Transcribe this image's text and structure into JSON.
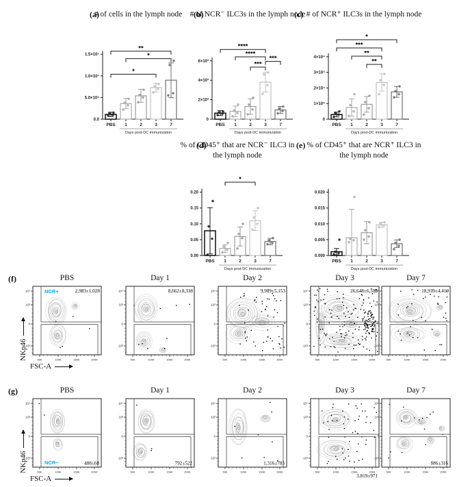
{
  "figure": {
    "bar_palette": [
      "#1a1a1a",
      "#a9a9a9",
      "#9b9b9b",
      "#c0c0c0",
      "#6f6f6f"
    ],
    "accent_cyan": "#00aeef",
    "axis_color": "#1a1a1a"
  },
  "panels": {
    "a": {
      "letter": "(a)",
      "title": "# of cells in the lymph node"
    },
    "b": {
      "letter": "(b)",
      "title": "# of NCR⁻ ILC3s in the lymph node"
    },
    "c": {
      "letter": "(c)",
      "title": "# of NCR⁺ ILC3s in the lymph node"
    },
    "d": {
      "letter": "(d)",
      "title": "% of CD45⁺ that are NCR⁻ ILC3 in the lymph node"
    },
    "e": {
      "letter": "(e)",
      "title": "% of CD45⁺ that are NCR⁺ ILC3 in the lymph node"
    }
  },
  "chart_data": {
    "a": {
      "type": "bar",
      "categories": [
        "PBS",
        "1",
        "2",
        "3",
        "7"
      ],
      "values": [
        1100000,
        3600000,
        5400000,
        7300000,
        9000000
      ],
      "errors": [
        500000,
        1200000,
        1500000,
        1000000,
        4000000
      ],
      "points": [
        [
          800000,
          1000000,
          1300000,
          1500000
        ],
        [
          2200000,
          3200000,
          3800000,
          4700000
        ],
        [
          3900000,
          5000000,
          5600000,
          6800000
        ],
        [
          6200000,
          7000000,
          7600000,
          8100000
        ],
        [
          5500000,
          6000000,
          12500000,
          13500000
        ]
      ],
      "ylim": [
        0,
        15500000
      ],
      "yticks": [
        {
          "v": 0,
          "label": "0.0"
        },
        {
          "v": 5000000,
          "label": "5.0×10⁶"
        },
        {
          "v": 10000000,
          "label": "1.0×10⁷"
        },
        {
          "v": 15000000,
          "label": "1.5×10⁷"
        }
      ],
      "significance": [
        {
          "from": 0,
          "to": 4,
          "label": "**",
          "row": 1.4
        },
        {
          "from": 1,
          "to": 4,
          "label": "*",
          "row": 2.3
        },
        {
          "from": 0,
          "to": 3,
          "label": "*",
          "row": 4.2
        }
      ],
      "xlabel": "Days post-DC immunization"
    },
    "b": {
      "type": "bar",
      "categories": [
        "PBS",
        "1",
        "2",
        "3",
        "7"
      ],
      "values": [
        620,
        800,
        1300,
        3800,
        950
      ],
      "errors": [
        250,
        550,
        800,
        1000,
        350
      ],
      "points": [
        [
          420,
          560,
          700,
          800
        ],
        [
          300,
          620,
          900,
          1500
        ],
        [
          500,
          1000,
          1500,
          2200
        ],
        [
          2600,
          3500,
          4600,
          4800
        ],
        [
          600,
          850,
          1100,
          1300
        ]
      ],
      "ylim": [
        0,
        6900
      ],
      "yticks": [
        {
          "v": 0,
          "label": "0"
        },
        {
          "v": 2000,
          "label": "2×10³"
        },
        {
          "v": 4000,
          "label": "4×10³"
        },
        {
          "v": 6000,
          "label": "6×10³"
        }
      ],
      "significance": [
        {
          "from": 0,
          "to": 3,
          "label": "****",
          "row": 1.18
        },
        {
          "from": 1,
          "to": 3,
          "label": "****",
          "row": 2.08
        },
        {
          "from": 3,
          "to": 4,
          "label": "***",
          "row": 2.63
        },
        {
          "from": 2,
          "to": 3,
          "label": "***",
          "row": 3.33
        }
      ],
      "xlabel": "Days post-DC immunization"
    },
    "c": {
      "type": "bar",
      "categories": [
        "PBS",
        "1",
        "2",
        "3",
        "7"
      ],
      "values": [
        3000,
        7500,
        9500,
        23500,
        17500
      ],
      "errors": [
        1500,
        5500,
        5000,
        5500,
        3500
      ],
      "points": [
        [
          1500,
          3000,
          4000,
          5000
        ],
        [
          2000,
          5000,
          9000,
          16000
        ],
        [
          3000,
          7000,
          11000,
          15000
        ],
        [
          16000,
          22000,
          25000,
          29000
        ],
        [
          14000,
          16000,
          18000,
          21000
        ]
      ],
      "ylim": [
        0,
        43000
      ],
      "yticks": [
        {
          "v": 0,
          "label": "0"
        },
        {
          "v": 10000,
          "label": "1×10⁴"
        },
        {
          "v": 20000,
          "label": "2×10⁴"
        },
        {
          "v": 30000,
          "label": "3×10⁴"
        },
        {
          "v": 40000,
          "label": "4×10⁴"
        }
      ],
      "significance": [
        {
          "from": 0,
          "to": 4,
          "label": "*",
          "row": 0
        },
        {
          "from": 0,
          "to": 3,
          "label": "***",
          "row": 1
        },
        {
          "from": 1,
          "to": 3,
          "label": "**",
          "row": 2
        },
        {
          "from": 2,
          "to": 3,
          "label": "**",
          "row": 3
        }
      ],
      "xlabel": "Days post-DC immunization"
    },
    "d": {
      "type": "bar",
      "categories": [
        "PBS",
        "1",
        "2",
        "3",
        "7"
      ],
      "values": [
        0.078,
        0.022,
        0.06,
        0.11,
        0.044
      ],
      "errors": [
        0.073,
        0.012,
        0.03,
        0.031,
        0.01
      ],
      "points": [
        [
          0.002,
          0.053,
          0.092,
          0.172
        ],
        [
          0.01,
          0.018,
          0.028,
          0.04
        ],
        [
          0.022,
          0.055,
          0.068,
          0.1
        ],
        [
          0.082,
          0.1,
          0.12,
          0.15
        ],
        [
          0.036,
          0.04,
          0.048,
          0.055
        ]
      ],
      "ylim": [
        0,
        0.212
      ],
      "yticks": [
        {
          "v": 0,
          "label": "0.00"
        },
        {
          "v": 0.05,
          "label": "0.05"
        },
        {
          "v": 0.1,
          "label": "0.10"
        },
        {
          "v": 0.15,
          "label": "0.15"
        },
        {
          "v": 0.2,
          "label": "0.20"
        }
      ],
      "significance": [
        {
          "from": 1,
          "to": 3,
          "label": "*",
          "row": 0.75
        }
      ],
      "xlabel": "Days post-DC immunization"
    },
    "e": {
      "type": "bar",
      "categories": [
        "PBS",
        "1",
        "2",
        "3",
        "7"
      ],
      "values": [
        0.0012,
        0.0056,
        0.0072,
        0.0097,
        0.0037
      ],
      "errors": [
        0.001,
        0.009,
        0.0035,
        0.0008,
        0.0012
      ],
      "points": [
        [
          0.0004,
          0.0008,
          0.0012,
          0.005
        ],
        [
          0.0042,
          0.0048,
          0.0052,
          0.0185
        ],
        [
          0.005,
          0.006,
          0.008,
          0.0105
        ],
        [
          0.009,
          0.0095,
          0.01,
          0.0105
        ],
        [
          0.002,
          0.003,
          0.004,
          0.005
        ]
      ],
      "ylim": [
        0,
        0.0212
      ],
      "yticks": [
        {
          "v": 0,
          "label": "0.000"
        },
        {
          "v": 0.005,
          "label": "0.005"
        },
        {
          "v": 0.01,
          "label": "0.010"
        },
        {
          "v": 0.015,
          "label": "0.015"
        },
        {
          "v": 0.02,
          "label": "0.020"
        }
      ],
      "significance": [],
      "xlabel": "Days post-DC immunization"
    },
    "flow_axis": {
      "ylabel": "NKp46",
      "xlabel": "FSC-A",
      "yticks": [
        {
          "f": 0.07,
          "label": "10⁴"
        },
        {
          "f": 0.27,
          "label": "10³"
        },
        {
          "f": 0.55,
          "label": "0"
        },
        {
          "f": 0.87,
          "label": "-10³"
        }
      ],
      "xticks": [
        {
          "f": 0.1,
          "label": "50K"
        },
        {
          "f": 0.37,
          "label": "100K"
        },
        {
          "f": 0.64,
          "label": "150K"
        },
        {
          "f": 0.9,
          "label": "200K"
        }
      ]
    },
    "f": {
      "type": "contour",
      "letter": "(f)",
      "gate": "NCR+",
      "plots": [
        {
          "title": "PBS",
          "count": "2,983±1,028",
          "count_pos": "tr",
          "gate_label": "NCR+",
          "gate_label_pos": "tl",
          "seed": 11,
          "outliers": 5,
          "contours": [
            [
              0.34,
              0.36,
              0.15,
              0.2,
              9
            ],
            [
              0.36,
              0.72,
              0.12,
              0.16,
              7
            ],
            [
              0.62,
              0.28,
              0.06,
              0.05,
              3
            ]
          ]
        },
        {
          "title": "Day 1",
          "count": "8,662±8,338",
          "count_pos": "tr",
          "seed": 12,
          "outliers": 9,
          "contours": [
            [
              0.3,
              0.33,
              0.17,
              0.19,
              9
            ],
            [
              0.27,
              0.8,
              0.12,
              0.13,
              6
            ],
            [
              0.55,
              0.93,
              0.05,
              0.04,
              2
            ]
          ]
        },
        {
          "title": "Day 2",
          "count": "9,989±5,153",
          "count_pos": "tr",
          "seed": 13,
          "outliers": 55,
          "spread": [
            0.3,
            0.98,
            0.08,
            0.95
          ],
          "contours": [
            [
              0.36,
              0.4,
              0.27,
              0.24,
              9
            ],
            [
              0.65,
              0.52,
              0.2,
              0.12,
              4
            ],
            [
              0.3,
              0.68,
              0.17,
              0.14,
              6
            ]
          ]
        },
        {
          "title": "Day 3",
          "count": "26,648±6,313",
          "count_pos": "tr",
          "seed": 14,
          "outliers": 140,
          "spread": [
            0.05,
            0.98,
            0.03,
            0.97
          ],
          "clusters": [
            {
              "cx": 0.85,
              "cy": 0.52,
              "r": 0.1,
              "count": 70
            }
          ],
          "contours": [
            [
              0.42,
              0.32,
              0.36,
              0.2,
              9
            ],
            [
              0.45,
              0.8,
              0.34,
              0.12,
              8
            ],
            [
              0.15,
              0.55,
              0.08,
              0.3,
              4
            ],
            [
              0.6,
              0.55,
              0.12,
              0.08,
              3
            ]
          ]
        },
        {
          "title": "Day 7",
          "count": "18,939±4,419",
          "count_pos": "tr",
          "seed": 15,
          "outliers": 40,
          "spread": [
            0.2,
            0.98,
            0.05,
            0.95
          ],
          "contours": [
            [
              0.42,
              0.36,
              0.32,
              0.22,
              9
            ],
            [
              0.4,
              0.7,
              0.24,
              0.13,
              6
            ],
            [
              0.8,
              0.7,
              0.07,
              0.06,
              3
            ],
            [
              0.85,
              0.3,
              0.05,
              0.04,
              2
            ]
          ]
        }
      ]
    },
    "g": {
      "type": "contour",
      "letter": "(g)",
      "gate": "NCR−",
      "plots": [
        {
          "title": "PBS",
          "count": "488±68",
          "count_pos": "br",
          "gate_label": "NCR−",
          "gate_label_pos": "bl",
          "seed": 21,
          "outliers": 2,
          "contours": [
            [
              0.36,
              0.33,
              0.11,
              0.18,
              9
            ],
            [
              0.37,
              0.66,
              0.07,
              0.09,
              5
            ]
          ]
        },
        {
          "title": "Day 1",
          "count": "792±522",
          "count_pos": "br",
          "seed": 22,
          "outliers": 3,
          "contours": [
            [
              0.3,
              0.33,
              0.13,
              0.18,
              9
            ],
            [
              0.22,
              0.78,
              0.11,
              0.13,
              7
            ]
          ]
        },
        {
          "title": "Day 2",
          "count": "1,316±783",
          "count_pos": "br",
          "seed": 23,
          "outliers": 8,
          "contours": [
            [
              0.3,
              0.42,
              0.13,
              0.27,
              8
            ],
            [
              0.68,
              0.28,
              0.07,
              0.05,
              2
            ]
          ]
        },
        {
          "title": "Day 3",
          "count": "3,819±971",
          "count_pos": "below",
          "seed": 24,
          "outliers": 55,
          "spread": [
            0.15,
            0.98,
            0.05,
            0.97
          ],
          "contours": [
            [
              0.36,
              0.3,
              0.24,
              0.16,
              9
            ],
            [
              0.36,
              0.74,
              0.24,
              0.14,
              8
            ]
          ]
        },
        {
          "title": "Day 7",
          "count": "886±316",
          "count_pos": "br",
          "seed": 25,
          "outliers": 15,
          "contours": [
            [
              0.36,
              0.28,
              0.15,
              0.13,
              8
            ],
            [
              0.58,
              0.33,
              0.11,
              0.07,
              4
            ],
            [
              0.33,
              0.66,
              0.12,
              0.11,
              6
            ],
            [
              0.72,
              0.6,
              0.05,
              0.05,
              2
            ],
            [
              0.87,
              0.44,
              0.04,
              0.04,
              2
            ]
          ]
        }
      ]
    }
  }
}
